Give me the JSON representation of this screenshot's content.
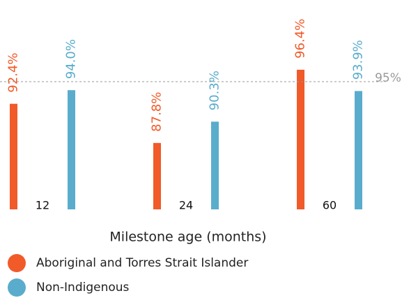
{
  "chart_data": {
    "type": "bar",
    "x_label": "Milestone age (months)",
    "categories": [
      "12",
      "24",
      "60"
    ],
    "series": [
      {
        "name": "Aboriginal and Torres Strait Islander",
        "color": "#f15a29",
        "values": [
          92.4,
          87.8,
          96.4
        ],
        "value_labels": [
          "92.4%",
          "87.8%",
          "96.4%"
        ]
      },
      {
        "name": "Non-Indigenous",
        "color": "#5aaccc",
        "values": [
          94.0,
          90.3,
          93.9
        ],
        "value_labels": [
          "94.0%",
          "90.3%",
          "93.9%"
        ]
      }
    ],
    "reference_line": {
      "value": 95,
      "label": "95%"
    },
    "ylim": [
      80,
      100
    ],
    "legend": "bottom-left"
  }
}
